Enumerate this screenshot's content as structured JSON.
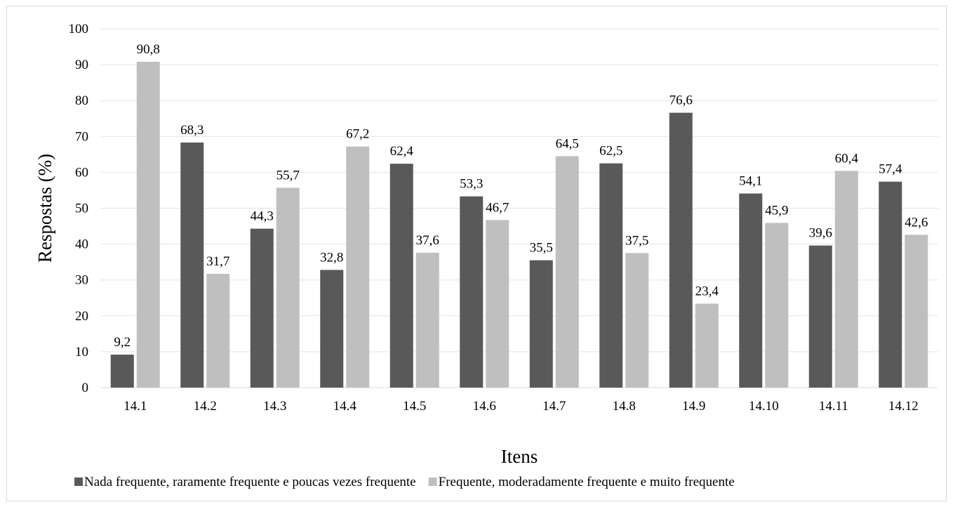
{
  "chart_data": {
    "type": "bar",
    "xlabel": "Itens",
    "ylabel": "Respostas (%)",
    "ylim": [
      0,
      100
    ],
    "yticks": [
      "0",
      "10",
      "20",
      "30",
      "40",
      "50",
      "60",
      "70",
      "80",
      "90",
      "100"
    ],
    "grid": true,
    "legend_position": "bottom",
    "categories": [
      "14.1",
      "14.2",
      "14.3",
      "14.4",
      "14.5",
      "14.6",
      "14.7",
      "14.8",
      "14.9",
      "14.10",
      "14.11",
      "14.12"
    ],
    "series": [
      {
        "name": "Nada frequente, raramente frequente e poucas vezes frequente",
        "color": "#595959",
        "values": [
          9.2,
          68.3,
          44.3,
          32.8,
          62.4,
          53.3,
          35.5,
          62.5,
          76.6,
          54.1,
          39.6,
          57.4
        ],
        "labels": [
          "9,2",
          "68,3",
          "44,3",
          "32,8",
          "62,4",
          "53,3",
          "35,5",
          "62,5",
          "76,6",
          "54,1",
          "39,6",
          "57,4"
        ]
      },
      {
        "name": "Frequente, moderadamente frequente e muito frequente",
        "color": "#bfbfbf",
        "values": [
          90.8,
          31.7,
          55.7,
          67.2,
          37.6,
          46.7,
          64.5,
          37.5,
          23.4,
          45.9,
          60.4,
          42.6
        ],
        "labels": [
          "90,8",
          "31,7",
          "55,7",
          "67,2",
          "37,6",
          "46,7",
          "64,5",
          "37,5",
          "23,4",
          "45,9",
          "60,4",
          "42,6"
        ]
      }
    ]
  }
}
